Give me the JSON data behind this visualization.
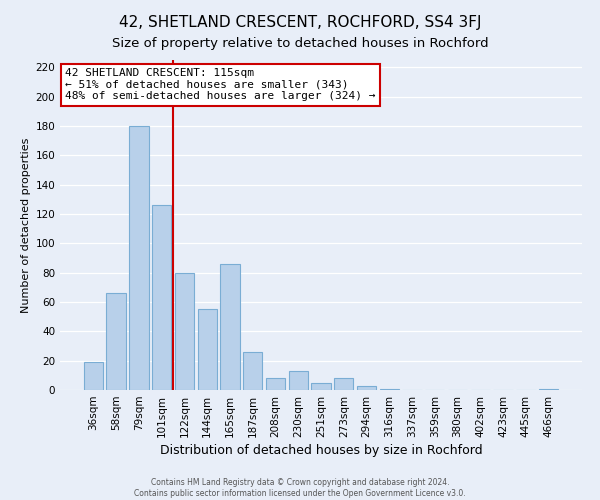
{
  "title": "42, SHETLAND CRESCENT, ROCHFORD, SS4 3FJ",
  "subtitle": "Size of property relative to detached houses in Rochford",
  "xlabel": "Distribution of detached houses by size in Rochford",
  "ylabel": "Number of detached properties",
  "footer_line1": "Contains HM Land Registry data © Crown copyright and database right 2024.",
  "footer_line2": "Contains public sector information licensed under the Open Government Licence v3.0.",
  "bar_labels": [
    "36sqm",
    "58sqm",
    "79sqm",
    "101sqm",
    "122sqm",
    "144sqm",
    "165sqm",
    "187sqm",
    "208sqm",
    "230sqm",
    "251sqm",
    "273sqm",
    "294sqm",
    "316sqm",
    "337sqm",
    "359sqm",
    "380sqm",
    "402sqm",
    "423sqm",
    "445sqm",
    "466sqm"
  ],
  "bar_values": [
    19,
    66,
    180,
    126,
    80,
    55,
    86,
    26,
    8,
    13,
    5,
    8,
    3,
    1,
    0,
    0,
    0,
    0,
    0,
    0,
    1
  ],
  "bar_color": "#b8d0ea",
  "bar_edge_color": "#7aadd4",
  "vline_x_index": 4,
  "vline_color": "#cc0000",
  "annotation_title": "42 SHETLAND CRESCENT: 115sqm",
  "annotation_line1": "← 51% of detached houses are smaller (343)",
  "annotation_line2": "48% of semi-detached houses are larger (324) →",
  "annotation_box_color": "#ffffff",
  "annotation_box_edge_color": "#cc0000",
  "ylim": [
    0,
    225
  ],
  "yticks": [
    0,
    20,
    40,
    60,
    80,
    100,
    120,
    140,
    160,
    180,
    200,
    220
  ],
  "background_color": "#e8eef8",
  "plot_bg_color": "#e8eef8",
  "grid_color": "#ffffff",
  "title_fontsize": 11,
  "subtitle_fontsize": 9.5,
  "xlabel_fontsize": 9,
  "ylabel_fontsize": 8,
  "annotation_fontsize": 8,
  "tick_fontsize": 7.5,
  "footer_fontsize": 5.5
}
